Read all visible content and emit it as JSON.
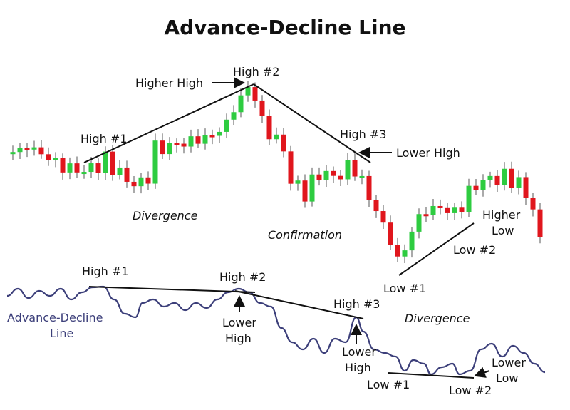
{
  "title": "Advance-Decline Line",
  "price_panel": {
    "high_1": "High #1",
    "higher_high": "Higher High",
    "high_2": "High #2",
    "high_3": "High #3",
    "lower_high": "Lower High",
    "divergence": "Divergence",
    "confirmation": "Confirmation",
    "higher_low": [
      "Higher",
      "Low"
    ],
    "low_2": "Low #2",
    "low_1": "Low #1"
  },
  "ad_panel": {
    "line_label": [
      "Advance-Decline",
      "Line"
    ],
    "high_1": "High #1",
    "high_2": "High #2",
    "high_3": "High #3",
    "lower_high_1": [
      "Lower",
      "High"
    ],
    "lower_high_2": [
      "Lower",
      "High"
    ],
    "divergence": "Divergence",
    "low_1": "Low #1",
    "low_2": "Low #2",
    "lower_low": [
      "Lower",
      "Low"
    ]
  }
}
